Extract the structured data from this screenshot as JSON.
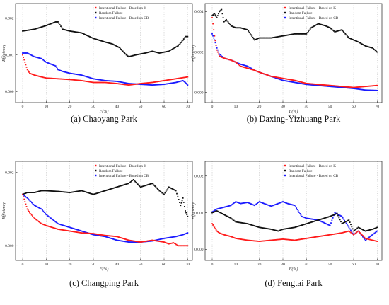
{
  "xlabel": "F(%)",
  "ylabel": "Efficiency",
  "legend": {
    "k": "Intentional Failure - Based on K",
    "random": "Random Failure",
    "cb": "Intentional Failure - Based on CB"
  },
  "colors": {
    "k": "#ff1a1a",
    "random": "#111111",
    "cb": "#1a1aff"
  },
  "chart_data": [
    {
      "type": "scatter",
      "caption": "(a) Chaoyang Park",
      "xlabel": "F(%)",
      "ylabel": "Efficiency",
      "xlim": [
        -3,
        72
      ],
      "ylim": [
        -0.0003,
        0.0024
      ],
      "xticks": [
        0,
        10,
        20,
        30,
        40,
        50,
        60,
        70
      ],
      "yticks": [
        0.0,
        0.001,
        0.002
      ],
      "ytick_labels": [
        "0.000",
        "0.001",
        "0.002"
      ],
      "legend_position": "top-center",
      "series": [
        {
          "key": "random",
          "name": "Random Failure",
          "x": [
            0,
            5,
            10,
            14,
            15,
            17,
            20,
            25,
            30,
            35,
            38,
            41,
            44,
            45,
            48,
            52,
            55,
            58,
            62,
            66,
            68,
            69,
            70
          ],
          "y": [
            0.00165,
            0.0017,
            0.0018,
            0.0019,
            0.0019,
            0.0017,
            0.00165,
            0.0016,
            0.00145,
            0.00135,
            0.0013,
            0.0012,
            0.001,
            0.00095,
            0.001,
            0.00105,
            0.0011,
            0.00105,
            0.0011,
            0.00125,
            0.0014,
            0.0015,
            0.0015
          ]
        },
        {
          "key": "cb",
          "name": "Intentional Failure - Based on CB",
          "x": [
            0,
            2,
            5,
            8,
            10,
            12,
            14,
            15,
            17,
            20,
            25,
            30,
            35,
            40,
            45,
            50,
            55,
            60,
            65,
            68,
            69,
            70
          ],
          "y": [
            0.00105,
            0.00105,
            0.00095,
            0.0009,
            0.0008,
            0.00075,
            0.0007,
            0.0006,
            0.00055,
            0.0005,
            0.00045,
            0.00035,
            0.0003,
            0.00028,
            0.00022,
            0.0002,
            0.00018,
            0.0002,
            0.00025,
            0.0003,
            0.00025,
            0.00018
          ]
        },
        {
          "key": "k",
          "name": "Intentional Failure - Based on K",
          "x": [
            0,
            1,
            2,
            3,
            5,
            8,
            10,
            15,
            20,
            25,
            30,
            35,
            40,
            45,
            50,
            55,
            60,
            65,
            68,
            70
          ],
          "y": [
            0.001,
            0.0008,
            0.0006,
            0.0005,
            0.00045,
            0.0004,
            0.00037,
            0.00035,
            0.00033,
            0.0003,
            0.00025,
            0.00025,
            0.00022,
            0.00018,
            0.00022,
            0.00025,
            0.0003,
            0.00035,
            0.00038,
            0.0004
          ]
        }
      ]
    },
    {
      "type": "scatter",
      "caption": "(b) Daxing-Yizhuang Park",
      "xlabel": "F(%)",
      "ylabel": "Efficiency",
      "xlim": [
        -3,
        72
      ],
      "ylim": [
        -0.0005,
        0.0044
      ],
      "xticks": [
        0,
        10,
        20,
        30,
        40,
        50,
        60,
        70
      ],
      "yticks": [
        0.0,
        0.002,
        0.004
      ],
      "ytick_labels": [
        "0.000",
        "0.002",
        "0.004"
      ],
      "legend_position": "top-center",
      "series": [
        {
          "key": "random",
          "name": "Random Failure",
          "x": [
            0,
            1,
            2,
            3,
            4,
            5,
            6,
            8,
            10,
            12,
            15,
            18,
            20,
            25,
            30,
            35,
            40,
            42,
            45,
            48,
            50,
            52,
            55,
            58,
            62,
            65,
            68,
            70
          ],
          "y": [
            0.0038,
            0.0039,
            0.0037,
            0.004,
            0.0041,
            0.0035,
            0.0036,
            0.0033,
            0.0032,
            0.0032,
            0.0031,
            0.0026,
            0.0027,
            0.0027,
            0.0028,
            0.0029,
            0.0029,
            0.0032,
            0.0034,
            0.0033,
            0.0032,
            0.003,
            0.0031,
            0.0027,
            0.0025,
            0.0023,
            0.0022,
            0.002
          ]
        },
        {
          "key": "cb",
          "name": "Intentional Failure - Based on CB",
          "x": [
            0,
            1,
            2,
            3,
            5,
            8,
            10,
            12,
            15,
            18,
            20,
            25,
            30,
            35,
            40,
            45,
            50,
            55,
            60,
            65,
            70
          ],
          "y": [
            0.0029,
            0.0026,
            0.0022,
            0.0019,
            0.0017,
            0.0016,
            0.0015,
            0.0014,
            0.0013,
            0.0011,
            0.001,
            0.0008,
            0.0006,
            0.0005,
            0.0004,
            0.00035,
            0.0003,
            0.00025,
            0.0002,
            0.00012,
            0.0001
          ]
        },
        {
          "key": "k",
          "name": "Intentional Failure - Based on K",
          "x": [
            0,
            1,
            2,
            3,
            5,
            8,
            10,
            12,
            15,
            18,
            20,
            25,
            30,
            35,
            40,
            45,
            50,
            55,
            60,
            65,
            70
          ],
          "y": [
            0.0037,
            0.0028,
            0.0021,
            0.0018,
            0.0017,
            0.0016,
            0.0015,
            0.0013,
            0.0012,
            0.0011,
            0.001,
            0.0008,
            0.0007,
            0.0006,
            0.00045,
            0.0004,
            0.00035,
            0.0003,
            0.00025,
            0.0003,
            0.00035
          ]
        }
      ]
    },
    {
      "type": "scatter",
      "caption": "(c) Changping Park",
      "xlabel": "F(%)",
      "ylabel": "Efficiency",
      "xlim": [
        -3,
        72
      ],
      "ylim": [
        -0.0004,
        0.0023
      ],
      "xticks": [
        0,
        10,
        20,
        30,
        40,
        50,
        60,
        70
      ],
      "yticks": [
        0.0,
        0.002
      ],
      "ytick_labels": [
        "0.000",
        "0.002"
      ],
      "legend_position": "top-center",
      "series": [
        {
          "key": "random",
          "name": "Random Failure",
          "x": [
            0,
            2,
            5,
            8,
            10,
            15,
            20,
            25,
            30,
            35,
            40,
            45,
            47,
            50,
            55,
            58,
            60,
            62,
            65,
            67,
            68,
            69,
            70
          ],
          "y": [
            0.0014,
            0.00145,
            0.00145,
            0.0015,
            0.0015,
            0.00148,
            0.00145,
            0.0015,
            0.0014,
            0.0015,
            0.0016,
            0.0017,
            0.0018,
            0.0016,
            0.0017,
            0.0015,
            0.0014,
            0.0016,
            0.0015,
            0.0011,
            0.0013,
            0.00095,
            0.0008
          ]
        },
        {
          "key": "cb",
          "name": "Intentional Failure - Based on CB",
          "x": [
            0,
            2,
            5,
            8,
            10,
            12,
            15,
            20,
            25,
            30,
            35,
            40,
            45,
            50,
            55,
            60,
            65,
            68,
            70
          ],
          "y": [
            0.0014,
            0.0013,
            0.0011,
            0.001,
            0.00085,
            0.00075,
            0.0006,
            0.0005,
            0.0004,
            0.0003,
            0.00025,
            0.00015,
            0.0001,
            0.0001,
            0.00013,
            0.0002,
            0.00025,
            0.0003,
            0.00035
          ]
        },
        {
          "key": "k",
          "name": "Intentional Failure - Based on K",
          "x": [
            0,
            1,
            2,
            3,
            5,
            8,
            10,
            15,
            20,
            25,
            30,
            35,
            40,
            45,
            50,
            55,
            60,
            62,
            64,
            66,
            68,
            70
          ],
          "y": [
            0.0014,
            0.0012,
            0.001,
            0.0009,
            0.00075,
            0.0006,
            0.00055,
            0.00045,
            0.0004,
            0.00035,
            0.00033,
            0.00028,
            0.00025,
            0.00015,
            0.0001,
            0.00015,
            0.0001,
            5e-05,
            8e-05,
            0.0,
            0.0,
            0.0
          ]
        }
      ]
    },
    {
      "type": "scatter",
      "caption": "(d) Fengtai Park",
      "xlabel": "F(%)",
      "ylabel": "Efficiency",
      "xlim": [
        -3,
        72
      ],
      "ylim": [
        -0.0003,
        0.0024
      ],
      "xticks": [
        0,
        10,
        20,
        30,
        40,
        50,
        60,
        70
      ],
      "yticks": [
        0.0,
        0.001,
        0.002
      ],
      "ytick_labels": [
        "0.000",
        "0.001",
        "0.002"
      ],
      "legend_position": "top-center",
      "series": [
        {
          "key": "cb",
          "name": "Intentional Failure - Based on CB",
          "x": [
            0,
            2,
            5,
            8,
            10,
            12,
            15,
            18,
            20,
            22,
            25,
            28,
            30,
            32,
            35,
            38,
            40,
            45,
            50,
            52,
            55,
            58,
            60,
            62,
            65,
            67,
            70
          ],
          "y": [
            0.00102,
            0.0011,
            0.00115,
            0.0012,
            0.0013,
            0.00125,
            0.00128,
            0.0012,
            0.0013,
            0.00125,
            0.00118,
            0.00125,
            0.0013,
            0.00125,
            0.0012,
            0.0009,
            0.00085,
            0.0008,
            0.00065,
            0.001,
            0.0009,
            0.0006,
            0.0004,
            0.0005,
            0.00025,
            0.00035,
            0.0005
          ]
        },
        {
          "key": "random",
          "name": "Random Failure",
          "x": [
            0,
            2,
            5,
            8,
            10,
            15,
            20,
            25,
            28,
            30,
            35,
            40,
            45,
            50,
            53,
            55,
            58,
            60,
            62,
            65,
            68,
            70
          ],
          "y": [
            0.001,
            0.00105,
            0.00095,
            0.00085,
            0.00075,
            0.0007,
            0.0006,
            0.00055,
            0.0005,
            0.00055,
            0.0006,
            0.0007,
            0.0008,
            0.0009,
            0.00098,
            0.0007,
            0.0008,
            0.0005,
            0.0006,
            0.0005,
            0.00055,
            0.0006
          ]
        },
        {
          "key": "k",
          "name": "Intentional Failure - Based on K",
          "x": [
            0,
            1,
            2,
            3,
            5,
            8,
            10,
            15,
            20,
            25,
            30,
            35,
            40,
            45,
            50,
            55,
            58,
            60,
            62,
            65,
            68,
            70
          ],
          "y": [
            0.0007,
            0.0006,
            0.0005,
            0.00045,
            0.0004,
            0.00035,
            0.0003,
            0.00025,
            0.00022,
            0.00025,
            0.00028,
            0.00025,
            0.0003,
            0.00035,
            0.0004,
            0.00045,
            0.0005,
            0.0004,
            0.0005,
            0.0003,
            0.00025,
            0.00022
          ]
        }
      ]
    }
  ]
}
